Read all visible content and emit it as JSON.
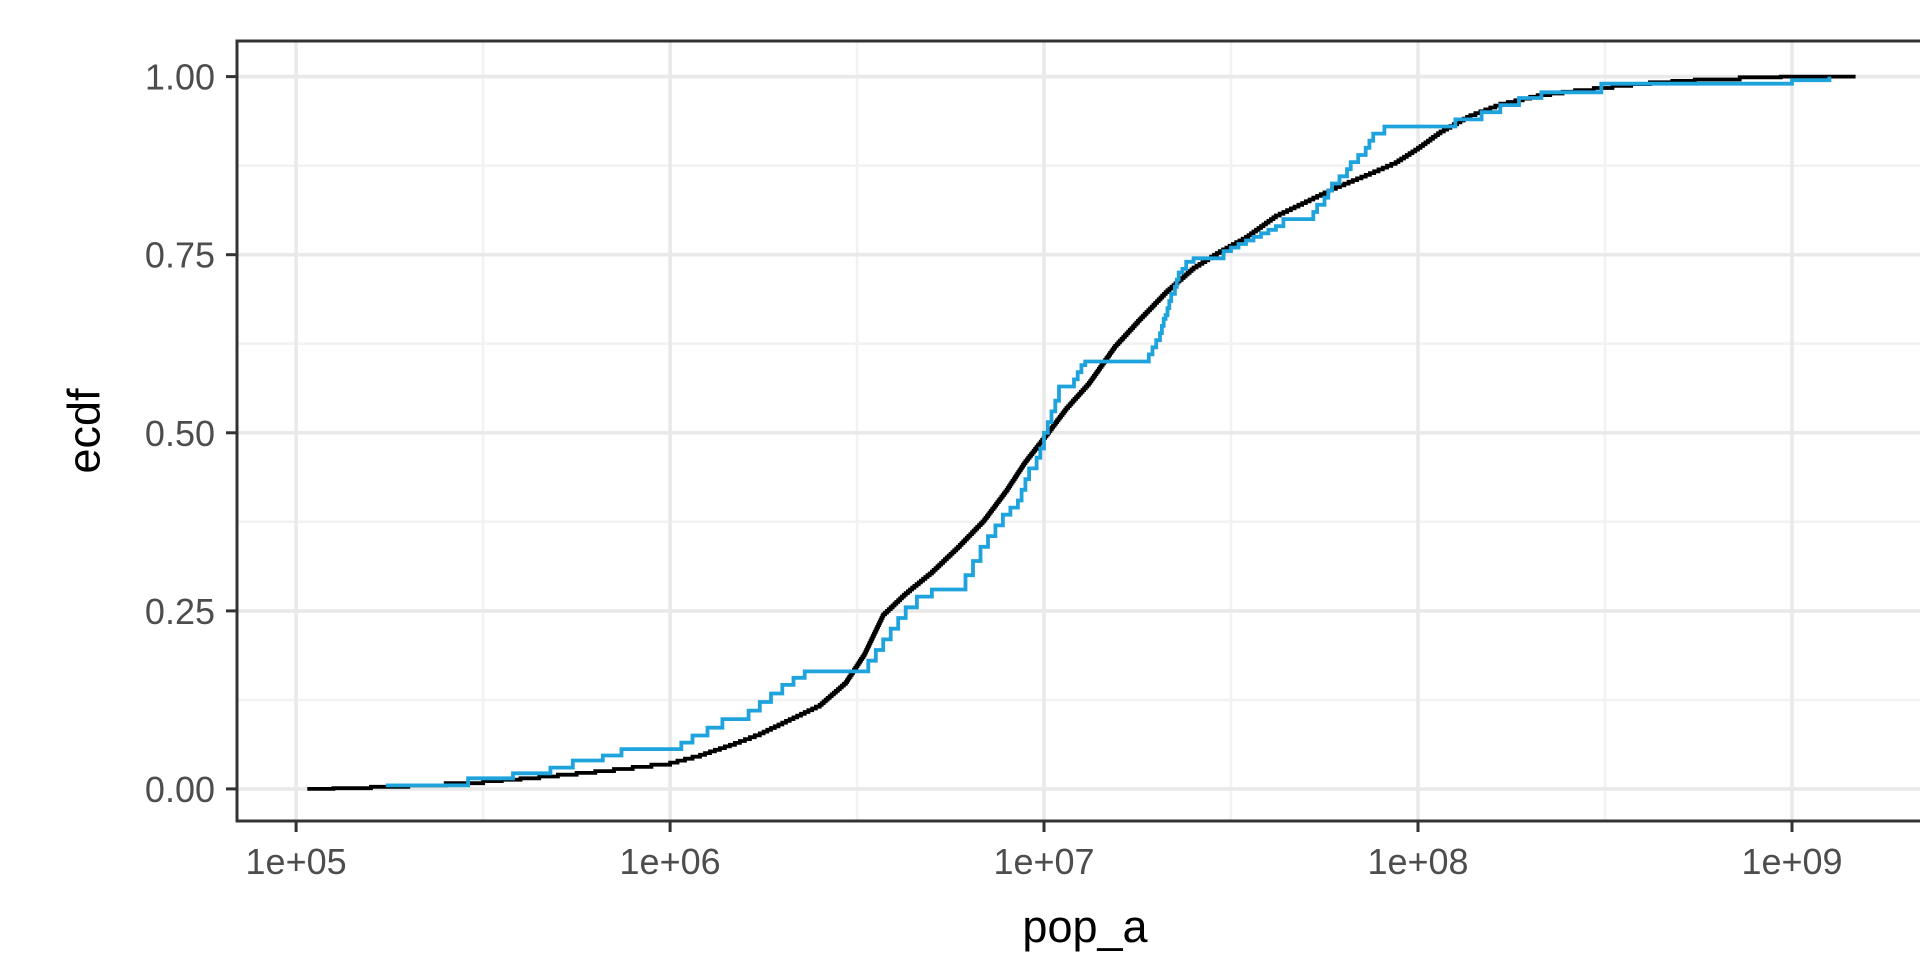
{
  "chart_data": {
    "type": "line",
    "subtype": "ecdf",
    "title": "",
    "xlabel": "pop_a",
    "ylabel": "ecdf",
    "x_scale": "log10",
    "grid": true,
    "legend": "none",
    "xlim_log10": [
      4.842,
      9.377
    ],
    "ylim": [
      -0.045,
      1.05
    ],
    "x_ticks": [
      {
        "label": "1e+05",
        "log10": 5
      },
      {
        "label": "1e+06",
        "log10": 6
      },
      {
        "label": "1e+07",
        "log10": 7
      },
      {
        "label": "1e+08",
        "log10": 8
      },
      {
        "label": "1e+09",
        "log10": 9
      }
    ],
    "x_minor_log10": [
      5.5,
      6.5,
      7.5,
      8.5
    ],
    "y_ticks": [
      {
        "label": "0.00",
        "value": 0.0
      },
      {
        "label": "0.25",
        "value": 0.25
      },
      {
        "label": "0.50",
        "value": 0.5
      },
      {
        "label": "0.75",
        "value": 0.75
      },
      {
        "label": "1.00",
        "value": 1.0
      }
    ],
    "y_minor": [
      0.125,
      0.375,
      0.625,
      0.875
    ],
    "series": [
      {
        "name": "ecdf-fine-black",
        "color": "#000000",
        "style": "ecdf-fine-steps",
        "step_increment": 0.0025,
        "points": [
          [
            5.03,
            0
          ],
          [
            5.1,
            0.001
          ],
          [
            5.2,
            0.003
          ],
          [
            5.3,
            0.005
          ],
          [
            5.4,
            0.008
          ],
          [
            5.5,
            0.011
          ],
          [
            5.6,
            0.015
          ],
          [
            5.7,
            0.02
          ],
          [
            5.8,
            0.025
          ],
          [
            5.9,
            0.031
          ],
          [
            6.0,
            0.037
          ],
          [
            6.08,
            0.048
          ],
          [
            6.16,
            0.062
          ],
          [
            6.24,
            0.078
          ],
          [
            6.32,
            0.098
          ],
          [
            6.4,
            0.118
          ],
          [
            6.47,
            0.15
          ],
          [
            6.52,
            0.19
          ],
          [
            6.57,
            0.245
          ],
          [
            6.63,
            0.275
          ],
          [
            6.7,
            0.305
          ],
          [
            6.77,
            0.34
          ],
          [
            6.84,
            0.378
          ],
          [
            6.9,
            0.42
          ],
          [
            6.95,
            0.46
          ],
          [
            7.01,
            0.5
          ],
          [
            7.06,
            0.535
          ],
          [
            7.12,
            0.57
          ],
          [
            7.19,
            0.622
          ],
          [
            7.26,
            0.662
          ],
          [
            7.33,
            0.7
          ],
          [
            7.4,
            0.732
          ],
          [
            7.47,
            0.755
          ],
          [
            7.54,
            0.775
          ],
          [
            7.62,
            0.805
          ],
          [
            7.7,
            0.825
          ],
          [
            7.78,
            0.845
          ],
          [
            7.86,
            0.862
          ],
          [
            7.94,
            0.88
          ],
          [
            8.0,
            0.9
          ],
          [
            8.06,
            0.923
          ],
          [
            8.14,
            0.946
          ],
          [
            8.22,
            0.962
          ],
          [
            8.32,
            0.974
          ],
          [
            8.42,
            0.981
          ],
          [
            8.52,
            0.987
          ],
          [
            8.62,
            0.992
          ],
          [
            8.74,
            0.996
          ],
          [
            8.86,
            0.999
          ],
          [
            8.97,
            1.0
          ],
          [
            9.17,
            1.0
          ]
        ]
      },
      {
        "name": "ecdf-steps-blue",
        "color": "#1FA3DC",
        "style": "ecdf-steps",
        "points": [
          [
            5.24,
            0.005
          ],
          [
            5.46,
            0.015
          ],
          [
            5.58,
            0.022
          ],
          [
            5.68,
            0.03
          ],
          [
            5.74,
            0.04
          ],
          [
            5.82,
            0.047
          ],
          [
            5.87,
            0.056
          ],
          [
            6.03,
            0.065
          ],
          [
            6.06,
            0.075
          ],
          [
            6.1,
            0.086
          ],
          [
            6.14,
            0.098
          ],
          [
            6.21,
            0.11
          ],
          [
            6.24,
            0.122
          ],
          [
            6.27,
            0.134
          ],
          [
            6.3,
            0.146
          ],
          [
            6.33,
            0.156
          ],
          [
            6.36,
            0.165
          ],
          [
            6.53,
            0.18
          ],
          [
            6.55,
            0.195
          ],
          [
            6.57,
            0.21
          ],
          [
            6.59,
            0.225
          ],
          [
            6.61,
            0.24
          ],
          [
            6.63,
            0.255
          ],
          [
            6.66,
            0.27
          ],
          [
            6.7,
            0.28
          ],
          [
            6.79,
            0.3
          ],
          [
            6.81,
            0.32
          ],
          [
            6.83,
            0.34
          ],
          [
            6.85,
            0.355
          ],
          [
            6.87,
            0.37
          ],
          [
            6.89,
            0.385
          ],
          [
            6.91,
            0.395
          ],
          [
            6.93,
            0.405
          ],
          [
            6.94,
            0.42
          ],
          [
            6.95,
            0.435
          ],
          [
            6.96,
            0.45
          ],
          [
            6.98,
            0.465
          ],
          [
            6.99,
            0.478
          ],
          [
            7.0,
            0.5
          ],
          [
            7.01,
            0.515
          ],
          [
            7.02,
            0.53
          ],
          [
            7.03,
            0.545
          ],
          [
            7.04,
            0.565
          ],
          [
            7.08,
            0.575
          ],
          [
            7.09,
            0.585
          ],
          [
            7.1,
            0.595
          ],
          [
            7.11,
            0.6
          ],
          [
            7.28,
            0.61
          ],
          [
            7.29,
            0.62
          ],
          [
            7.3,
            0.63
          ],
          [
            7.31,
            0.64
          ],
          [
            7.315,
            0.65
          ],
          [
            7.32,
            0.66
          ],
          [
            7.325,
            0.665
          ],
          [
            7.33,
            0.675
          ],
          [
            7.335,
            0.685
          ],
          [
            7.34,
            0.695
          ],
          [
            7.35,
            0.705
          ],
          [
            7.355,
            0.715
          ],
          [
            7.36,
            0.725
          ],
          [
            7.37,
            0.73
          ],
          [
            7.38,
            0.74
          ],
          [
            7.4,
            0.745
          ],
          [
            7.48,
            0.755
          ],
          [
            7.5,
            0.76
          ],
          [
            7.52,
            0.765
          ],
          [
            7.54,
            0.77
          ],
          [
            7.56,
            0.775
          ],
          [
            7.58,
            0.78
          ],
          [
            7.6,
            0.785
          ],
          [
            7.62,
            0.79
          ],
          [
            7.64,
            0.8
          ],
          [
            7.72,
            0.81
          ],
          [
            7.73,
            0.82
          ],
          [
            7.75,
            0.83
          ],
          [
            7.76,
            0.84
          ],
          [
            7.77,
            0.85
          ],
          [
            7.79,
            0.86
          ],
          [
            7.81,
            0.87
          ],
          [
            7.82,
            0.88
          ],
          [
            7.84,
            0.89
          ],
          [
            7.86,
            0.9
          ],
          [
            7.87,
            0.91
          ],
          [
            7.88,
            0.92
          ],
          [
            7.91,
            0.93
          ],
          [
            8.1,
            0.94
          ],
          [
            8.17,
            0.95
          ],
          [
            8.22,
            0.96
          ],
          [
            8.27,
            0.97
          ],
          [
            8.33,
            0.978
          ],
          [
            8.49,
            0.99
          ],
          [
            9.0,
            0.995
          ],
          [
            9.1,
            1.0
          ]
        ]
      }
    ]
  },
  "colors": {
    "background": "#FFFFFF",
    "panel_border": "#333333",
    "grid_major": "#E9E9E9",
    "grid_minor": "#F2F2F2",
    "tick_mark": "#333333",
    "tick_text": "#4D4D4D",
    "axis_title": "#000000",
    "series_black": "#000000",
    "series_blue": "#1FA3DC"
  }
}
